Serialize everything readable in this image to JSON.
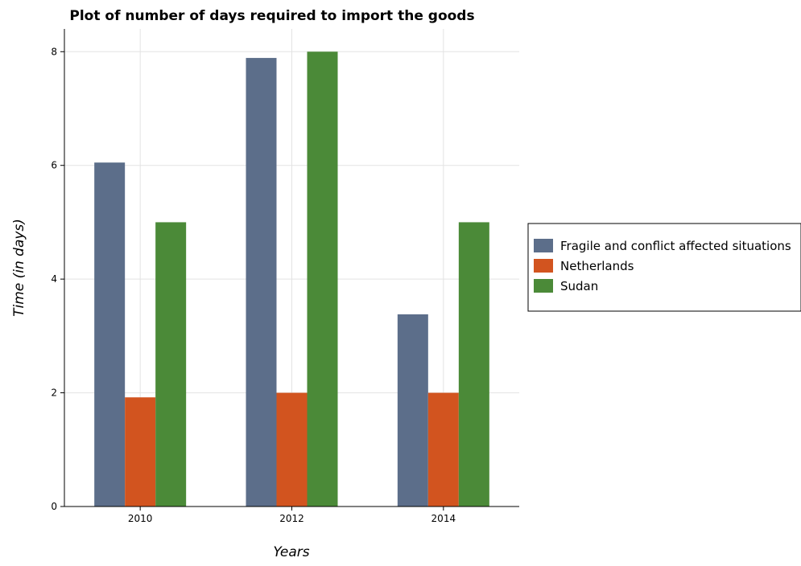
{
  "chart_data": {
    "type": "bar",
    "title": "Plot of number of days required to import the goods",
    "xlabel": "Years",
    "ylabel": "Time (in days)",
    "categories": [
      "2010",
      "2012",
      "2014"
    ],
    "ylim": [
      0,
      8.4
    ],
    "yticks": [
      0,
      2,
      4,
      6,
      8
    ],
    "grid": true,
    "legend_position": "right",
    "series": [
      {
        "name": "Fragile and conflict affected situations",
        "color": "#5c6e8a",
        "values": [
          6.05,
          7.89,
          3.38
        ]
      },
      {
        "name": "Netherlands",
        "color": "#d2541f",
        "values": [
          1.92,
          2.0,
          2.0
        ]
      },
      {
        "name": "Sudan",
        "color": "#4b8a38",
        "values": [
          5.0,
          8.0,
          5.0
        ]
      }
    ]
  }
}
